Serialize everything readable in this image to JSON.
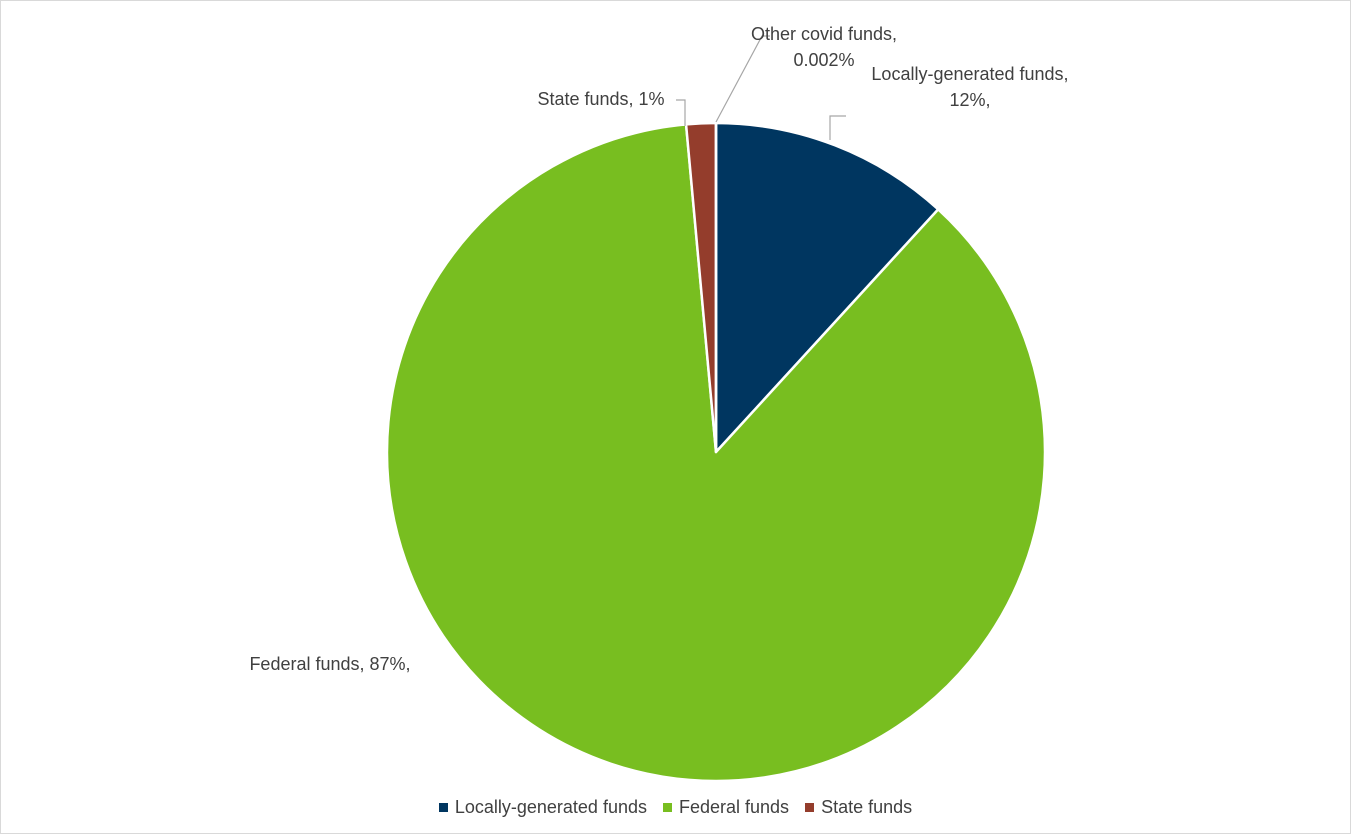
{
  "chart_data": {
    "type": "pie",
    "title": "",
    "slices": [
      {
        "name": "Locally-generated funds",
        "value": 11.8,
        "color": "#003660",
        "label_lines": [
          "Locally-generated funds,",
          "12%,"
        ]
      },
      {
        "name": "Federal funds",
        "value": 86.75,
        "color": "#78BE20",
        "label_lines": [
          "Federal funds, 87%,"
        ]
      },
      {
        "name": "State funds",
        "value": 1.448,
        "color": "#943D2C",
        "label_lines": [
          "State funds, 1%"
        ]
      },
      {
        "name": "Other covid funds",
        "value": 0.002,
        "color": "#A5A5A5",
        "label_lines": [
          "Other covid funds,",
          "0.002%"
        ]
      }
    ],
    "legend": {
      "placement": "bottom",
      "entries": [
        {
          "name": "Locally-generated funds",
          "color": "#003660"
        },
        {
          "name": "Federal funds",
          "color": "#78BE20"
        },
        {
          "name": "State funds",
          "color": "#943D2C"
        }
      ]
    },
    "leader_line_color": "#A6A6A6"
  }
}
